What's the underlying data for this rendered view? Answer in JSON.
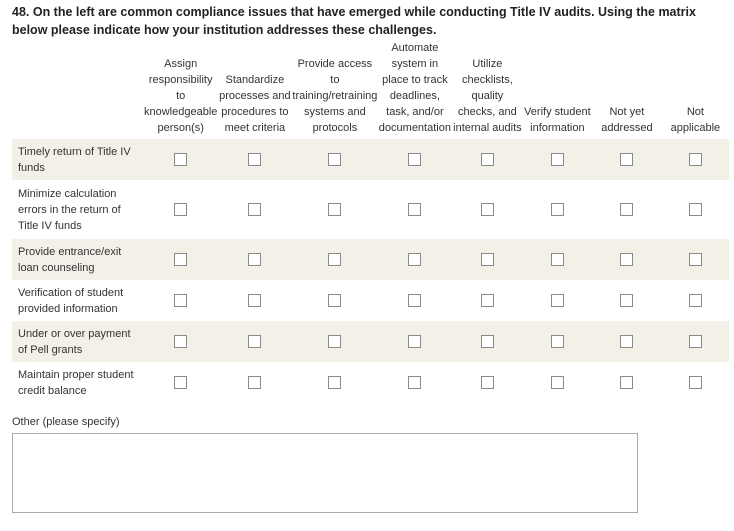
{
  "question": {
    "title": "48. On the left are common compliance issues that have emerged while conducting Title IV audits. Using the matrix below please indicate how your institution addresses these challenges."
  },
  "matrix": {
    "columns": [
      "Assign responsibility to knowledgeable person(s)",
      "Standardize processes and procedures to meet criteria",
      "Provide access to training/retraining systems and protocols",
      "Automate system in place to track deadlines, task, and/or documentation",
      "Utilize checklists, quality checks, and internal audits",
      "Verify student information",
      "Not yet addressed",
      "Not applicable"
    ],
    "rows": [
      "Timely return of Title IV funds",
      "Minimize calculation errors in the return of Title IV funds",
      "Provide entrance/exit loan counseling",
      "Verification of student provided information",
      "Under or over payment of Pell grants",
      "Maintain proper student credit balance"
    ]
  },
  "other": {
    "label": "Other (please specify)"
  }
}
